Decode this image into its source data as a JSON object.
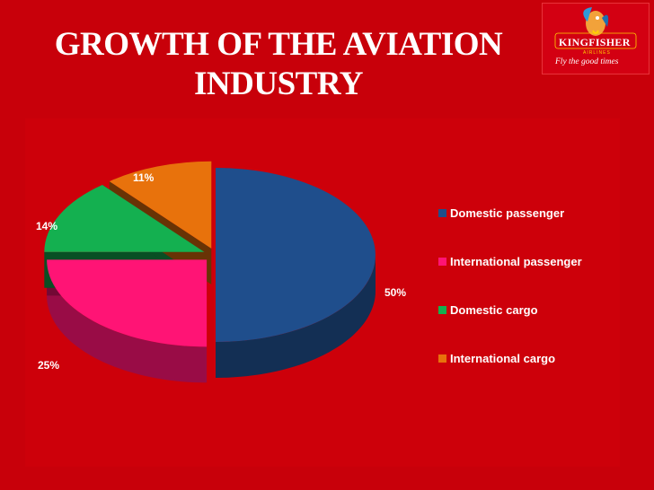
{
  "slide": {
    "title_line1": "GROWTH OF THE AVIATION",
    "title_line2": "INDUSTRY",
    "background_color": "#c8000a"
  },
  "logo": {
    "brand": "KINGFISHER",
    "sub": "AIRLINES",
    "tagline": "Fly the good times"
  },
  "chart_data": {
    "type": "pie",
    "style": "3d-exploded",
    "title": "",
    "legend_position": "right",
    "slices": [
      {
        "label": "Domestic passenger",
        "value": 50,
        "display": "50%",
        "color": "#1f4e8c"
      },
      {
        "label": "International passenger",
        "value": 25,
        "display": "25%",
        "color": "#ff1475"
      },
      {
        "label": "Domestic cargo",
        "value": 14,
        "display": "14%",
        "color": "#14b050"
      },
      {
        "label": "International cargo",
        "value": 11,
        "display": "11%",
        "color": "#e8720c"
      }
    ]
  }
}
